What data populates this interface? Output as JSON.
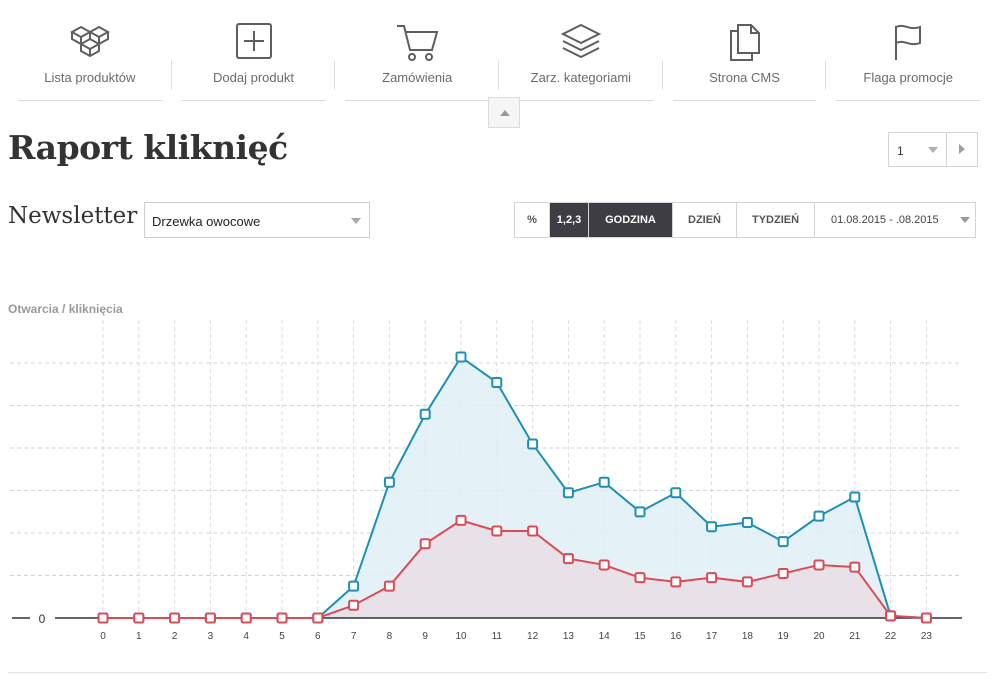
{
  "nav": {
    "items": [
      {
        "label": "Lista produktów",
        "icon": "boxes-icon"
      },
      {
        "label": "Dodaj produkt",
        "icon": "plus-square-icon"
      },
      {
        "label": "Zamówienia",
        "icon": "cart-icon"
      },
      {
        "label": "Zarz. kategoriami",
        "icon": "layers-icon"
      },
      {
        "label": "Strona CMS",
        "icon": "documents-icon"
      },
      {
        "label": "Flaga promocje",
        "icon": "flag-icon"
      }
    ]
  },
  "page": {
    "title": "Raport kliknięć",
    "pager_value": "1"
  },
  "newsletter": {
    "label": "Newsletter",
    "selected": "Drzewka owocowe"
  },
  "toolbar": {
    "percent": "%",
    "numbers": "1,2,3",
    "hour": "GODZINA",
    "day": "DZIEŃ",
    "week": "TYDZIEŃ",
    "date_range": "01.08.2015 - .08.2015",
    "active": "GODZINA"
  },
  "colors": {
    "opens": "#1e8fb4",
    "opens_fill": "#dff0f7",
    "clicks": "#d94b57",
    "clicks_fill": "#e8dfe6",
    "active_btn": "#3f3d44"
  },
  "chart_data": {
    "type": "area",
    "title": "Otwarcia / kliknięcia",
    "xlabel": "",
    "ylabel": "",
    "y_tick_labels": [
      "0"
    ],
    "x": [
      0,
      1,
      2,
      3,
      4,
      5,
      6,
      7,
      8,
      9,
      10,
      11,
      12,
      13,
      14,
      15,
      16,
      17,
      18,
      19,
      20,
      21,
      22,
      23
    ],
    "ylim": [
      0,
      6
    ],
    "grid": true,
    "series": [
      {
        "values": [
          0,
          0,
          0,
          0,
          0,
          0,
          0,
          0.75,
          3.2,
          4.8,
          6.15,
          5.55,
          4.1,
          2.95,
          3.2,
          2.5,
          2.95,
          2.15,
          2.25,
          1.8,
          2.4,
          2.85,
          0.05,
          0
        ],
        "color_key": "opens"
      },
      {
        "values": [
          0,
          0,
          0,
          0,
          0,
          0,
          0,
          0.3,
          0.75,
          1.75,
          2.3,
          2.05,
          2.05,
          1.4,
          1.25,
          0.95,
          0.85,
          0.95,
          0.85,
          1.05,
          1.25,
          1.2,
          0.05,
          0
        ],
        "color_key": "clicks"
      }
    ]
  }
}
